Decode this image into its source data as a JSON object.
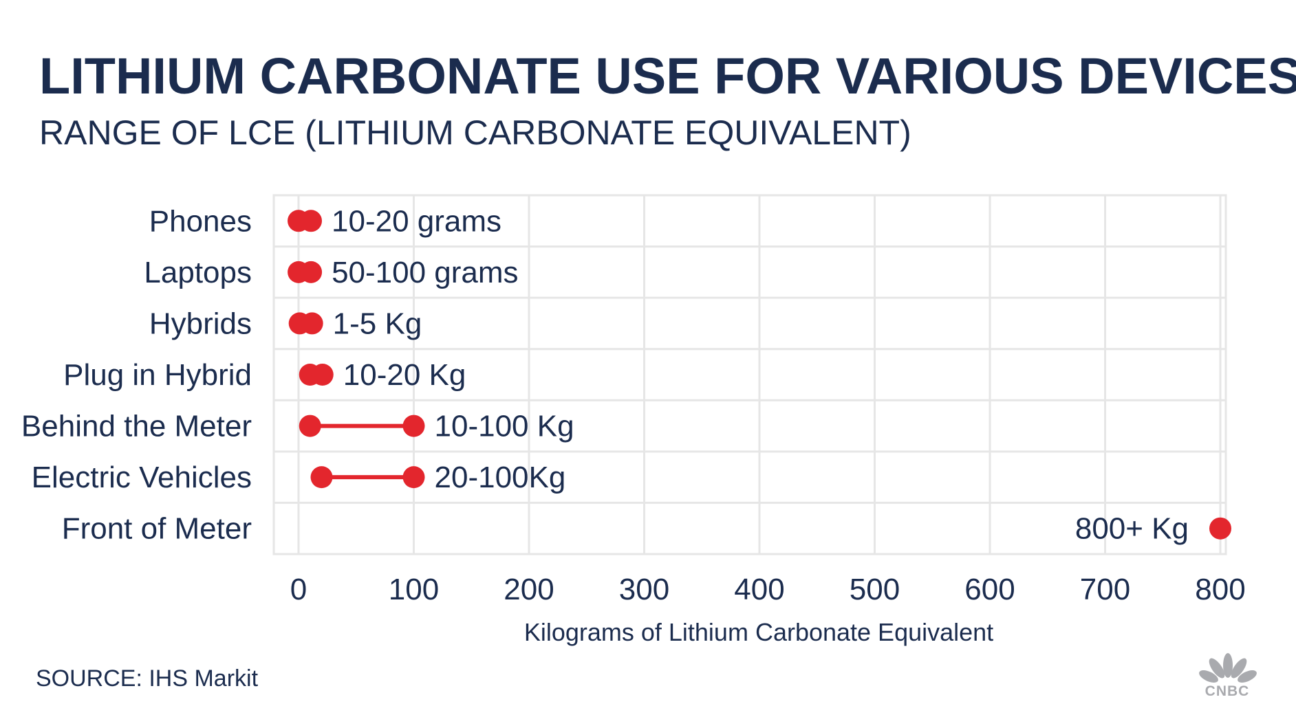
{
  "chart_data": {
    "type": "range-dot",
    "title": "LITHIUM CARBONATE USE FOR VARIOUS DEVICES",
    "subtitle": "RANGE OF LCE (LITHIUM CARBONATE EQUIVALENT)",
    "xlabel": "Kilograms of Lithium Carbonate Equivalent",
    "ylabel": "",
    "xlim": [
      -20,
      800
    ],
    "xticks": [
      "0",
      "100",
      "200",
      "300",
      "400",
      "500",
      "600",
      "700",
      "800"
    ],
    "grid": true,
    "categories": [
      "Phones",
      "Laptops",
      "Hybrids",
      "Plug in Hybrid",
      "Behind the Meter",
      "Electric Vehicles",
      "Front of Meter"
    ],
    "ranges": [
      {
        "min": 0.01,
        "max": 0.02,
        "label": "10-20 grams"
      },
      {
        "min": 0.05,
        "max": 0.1,
        "label": "50-100 grams"
      },
      {
        "min": 1,
        "max": 5,
        "label": "1-5 Kg"
      },
      {
        "min": 10,
        "max": 20,
        "label": "10-20 Kg"
      },
      {
        "min": 10,
        "max": 100,
        "label": "10-100 Kg"
      },
      {
        "min": 20,
        "max": 100,
        "label": "20-100Kg"
      },
      {
        "min": 800,
        "max": 800,
        "label": "800+ Kg"
      }
    ],
    "colors": {
      "dot": "#e3262d",
      "text": "#1b2c4e",
      "grid": "#e6e6e6"
    }
  },
  "source": "SOURCE: IHS Markit",
  "logo": {
    "text": "CNBC",
    "icon": "peacock-icon"
  }
}
